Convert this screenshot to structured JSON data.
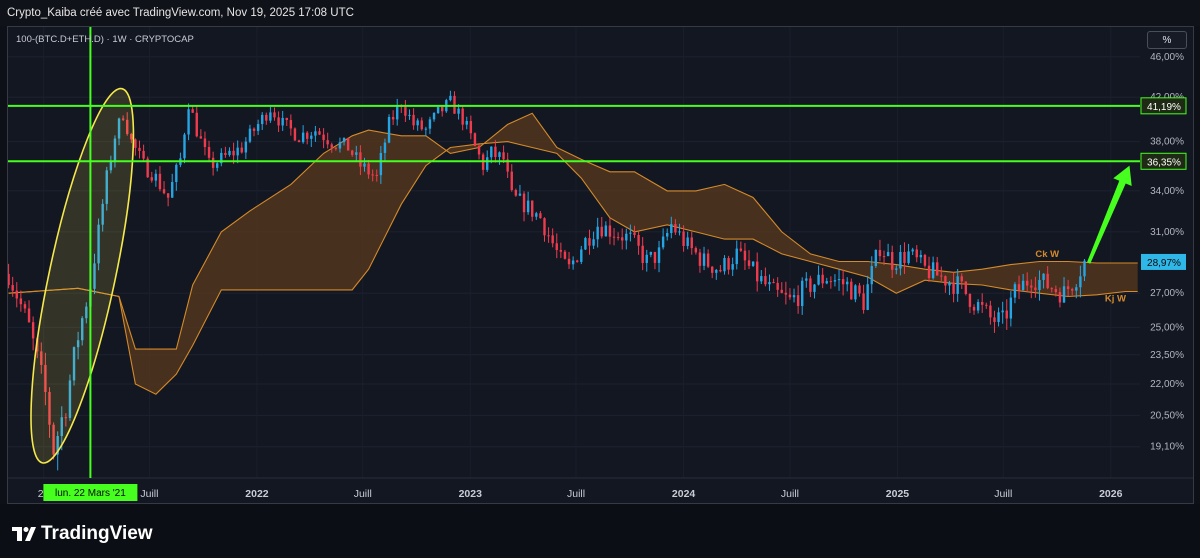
{
  "header": {
    "text": "Crypto_Kaiba créé avec TradingView.com, Nov 19, 2025 17:08 UTC"
  },
  "symbol": {
    "text": "100-(BTC.D+ETH.D) · 1W · CRYPTOCAP"
  },
  "scale_button": {
    "label": "%"
  },
  "brand": {
    "name": "TradingView"
  },
  "colors": {
    "background": "#131722",
    "candle_up": "#26a5e4",
    "candle_down": "#ef3b4e",
    "level_lines": "#46ff1f",
    "cloud_fill": "#5a3a1c",
    "cloud_line": "#d48a2a",
    "highlight_ellipse": "#f5e84a",
    "arrow": "#46ff1f",
    "current_price_tag": "#2fb7e8"
  },
  "chart_data": {
    "type": "candlestick",
    "title": "",
    "y_scale": "log",
    "y_ticks": [
      "46,00%",
      "42,00%",
      "38,00%",
      "34,00%",
      "31,00%",
      "27,00%",
      "25,00%",
      "23,50%",
      "22,00%",
      "20,50%",
      "19,10%"
    ],
    "x_ticks": [
      "20",
      "Juill",
      "2022",
      "Juill",
      "2023",
      "Juill",
      "2024",
      "Juill",
      "2025",
      "Juill",
      "2026"
    ],
    "x_range": [
      "2020-11-01",
      "2026-02-20"
    ],
    "y_range": [
      17.8,
      49.2
    ],
    "crosshair": {
      "date": "2021-03-22",
      "label": "lun. 22 Mars '21"
    },
    "levels": [
      {
        "value": 41.19,
        "label": "41,19%"
      },
      {
        "value": 36.35,
        "label": "36,35%"
      }
    ],
    "current_price": {
      "value": 28.97,
      "label": "28,97%"
    },
    "ichimoku_labels": [
      {
        "text": "Ck W",
        "date": "2025-08-25",
        "value": 29.3
      },
      {
        "text": "Kj W",
        "date": "2025-12-22",
        "value": 26.5
      }
    ],
    "close_path": [
      [
        "2020-11-02",
        28.2
      ],
      [
        "2020-12-07",
        25.0
      ],
      [
        "2021-01-04",
        21.5
      ],
      [
        "2021-01-18",
        19.0
      ],
      [
        "2021-02-08",
        21.0
      ],
      [
        "2021-03-01",
        24.5
      ],
      [
        "2021-03-22",
        27.5
      ],
      [
        "2021-04-05",
        31.0
      ],
      [
        "2021-04-19",
        35.0
      ],
      [
        "2021-05-03",
        38.5
      ],
      [
        "2021-05-17",
        40.5
      ],
      [
        "2021-05-31",
        38.0
      ],
      [
        "2021-06-21",
        36.0
      ],
      [
        "2021-07-05",
        35.5
      ],
      [
        "2021-08-02",
        33.5
      ],
      [
        "2021-08-23",
        36.5
      ],
      [
        "2021-09-06",
        41.5
      ],
      [
        "2021-09-20",
        39.0
      ],
      [
        "2021-10-11",
        36.0
      ],
      [
        "2021-11-01",
        36.5
      ],
      [
        "2021-12-06",
        37.5
      ],
      [
        "2022-01-03",
        39.5
      ],
      [
        "2022-01-24",
        41.0
      ],
      [
        "2022-02-14",
        39.5
      ],
      [
        "2022-03-14",
        38.5
      ],
      [
        "2022-04-11",
        39.0
      ],
      [
        "2022-05-09",
        38.0
      ],
      [
        "2022-06-06",
        37.5
      ],
      [
        "2022-06-27",
        36.0
      ],
      [
        "2022-07-25",
        35.0
      ],
      [
        "2022-08-15",
        39.5
      ],
      [
        "2022-09-05",
        41.5
      ],
      [
        "2022-09-26",
        39.5
      ],
      [
        "2022-10-17",
        39.0
      ],
      [
        "2022-11-07",
        40.5
      ],
      [
        "2022-11-28",
        41.5
      ],
      [
        "2022-12-19",
        40.0
      ],
      [
        "2023-01-09",
        37.5
      ],
      [
        "2023-01-23",
        36.0
      ],
      [
        "2023-02-06",
        37.0
      ],
      [
        "2023-02-27",
        36.5
      ],
      [
        "2023-03-13",
        33.5
      ],
      [
        "2023-04-03",
        33.0
      ],
      [
        "2023-05-01",
        32.0
      ],
      [
        "2023-06-05",
        29.0
      ],
      [
        "2023-06-19",
        28.5
      ],
      [
        "2023-07-10",
        30.0
      ],
      [
        "2023-08-07",
        31.5
      ],
      [
        "2023-09-04",
        31.0
      ],
      [
        "2023-10-02",
        30.5
      ],
      [
        "2023-10-30",
        29.0
      ],
      [
        "2023-11-20",
        29.5
      ],
      [
        "2023-12-11",
        31.5
      ],
      [
        "2024-01-08",
        30.0
      ],
      [
        "2024-02-05",
        29.0
      ],
      [
        "2024-03-04",
        28.5
      ],
      [
        "2024-04-01",
        29.5
      ],
      [
        "2024-05-06",
        28.0
      ],
      [
        "2024-06-03",
        27.0
      ],
      [
        "2024-07-01",
        26.5
      ],
      [
        "2024-08-05",
        27.5
      ],
      [
        "2024-09-02",
        28.0
      ],
      [
        "2024-10-07",
        27.5
      ],
      [
        "2024-11-04",
        26.5
      ],
      [
        "2024-12-02",
        30.0
      ],
      [
        "2024-12-23",
        29.0
      ],
      [
        "2025-01-20",
        29.5
      ],
      [
        "2025-02-17",
        28.5
      ],
      [
        "2025-03-17",
        28.0
      ],
      [
        "2025-04-14",
        27.5
      ],
      [
        "2025-05-12",
        26.5
      ],
      [
        "2025-06-09",
        25.5
      ],
      [
        "2025-06-30",
        25.3
      ],
      [
        "2025-07-21",
        27.0
      ],
      [
        "2025-08-18",
        28.0
      ],
      [
        "2025-09-15",
        27.5
      ],
      [
        "2025-10-13",
        27.0
      ],
      [
        "2025-11-03",
        28.0
      ],
      [
        "2025-11-17",
        28.97
      ]
    ],
    "kumo": [
      [
        "2020-11-02",
        27.0,
        27.0
      ],
      [
        "2021-03-01",
        27.3,
        27.3
      ],
      [
        "2021-05-10",
        26.8,
        26.8
      ],
      [
        "2021-06-07",
        23.8,
        22.0
      ],
      [
        "2021-07-12",
        23.8,
        21.5
      ],
      [
        "2021-08-16",
        23.8,
        22.5
      ],
      [
        "2021-09-13",
        27.5,
        24.0
      ],
      [
        "2021-11-01",
        31.0,
        27.2
      ],
      [
        "2021-12-20",
        32.5,
        27.2
      ],
      [
        "2022-02-28",
        34.5,
        27.2
      ],
      [
        "2022-04-25",
        37.0,
        27.2
      ],
      [
        "2022-06-13",
        38.5,
        27.2
      ],
      [
        "2022-07-11",
        39.0,
        28.5
      ],
      [
        "2022-09-05",
        38.5,
        33.0
      ],
      [
        "2022-10-17",
        38.5,
        36.0
      ],
      [
        "2022-11-28",
        37.0,
        37.5
      ],
      [
        "2023-01-16",
        37.5,
        37.8
      ],
      [
        "2023-03-06",
        39.5,
        38.0
      ],
      [
        "2023-04-17",
        40.5,
        37.5
      ],
      [
        "2023-05-29",
        37.5,
        37.0
      ],
      [
        "2023-07-10",
        36.5,
        35.0
      ],
      [
        "2023-08-28",
        35.5,
        32.0
      ],
      [
        "2023-10-09",
        35.5,
        31.0
      ],
      [
        "2023-12-04",
        34.0,
        31.5
      ],
      [
        "2024-01-22",
        34.0,
        31.0
      ],
      [
        "2024-03-11",
        34.5,
        30.5
      ],
      [
        "2024-04-29",
        33.5,
        30.5
      ],
      [
        "2024-06-17",
        31.0,
        29.5
      ],
      [
        "2024-08-05",
        29.5,
        29.0
      ],
      [
        "2024-09-23",
        29.0,
        28.5
      ],
      [
        "2024-11-11",
        29.0,
        28.0
      ],
      [
        "2024-12-30",
        28.8,
        27.0
      ],
      [
        "2025-02-17",
        28.5,
        27.8
      ],
      [
        "2025-04-07",
        28.3,
        27.6
      ],
      [
        "2025-05-26",
        28.5,
        27.5
      ],
      [
        "2025-07-14",
        28.8,
        27.2
      ],
      [
        "2025-09-01",
        29.0,
        27.0
      ],
      [
        "2025-10-20",
        29.0,
        26.8
      ],
      [
        "2025-12-08",
        28.9,
        26.9
      ],
      [
        "2026-01-26",
        28.9,
        27.1
      ],
      [
        "2026-02-16",
        28.9,
        27.1
      ]
    ]
  }
}
